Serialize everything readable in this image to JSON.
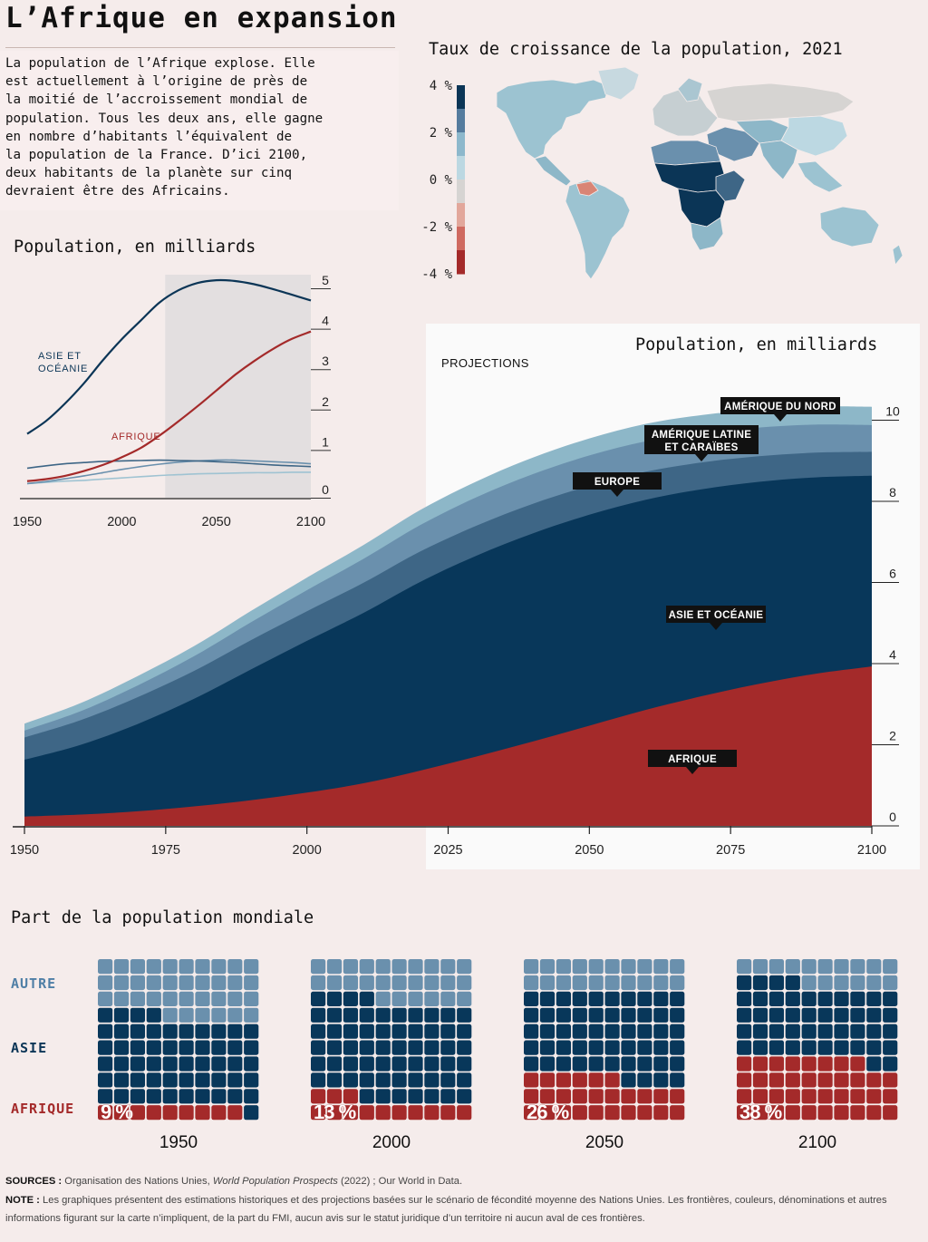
{
  "header": {
    "title": "L’Afrique en expansion",
    "intro": "La population de l’Afrique explose. Elle\nest actuellement à l’origine de près de\nla moitié de l’accroissement mondial de\npopulation. Tous les deux ans, elle gagne\nen nombre d’habitants l’équivalent de\nla population de la France. D’ici 2100,\ndeux habitants de la planète sur cinq\ndevraient être des Africains."
  },
  "map_panel": {
    "title": "Taux de croissance de la population, 2021",
    "legend_labels": [
      "4 %",
      "2 %",
      "0 %",
      "-2 %",
      "-4 %"
    ],
    "legend_colors": [
      "#0b3556",
      "#557c9e",
      "#8db8cc",
      "#bcd8e2",
      "#d6d4d2",
      "#e2a79b",
      "#cf6a60",
      "#a42a2a"
    ]
  },
  "colors": {
    "africa": "#a42a2a",
    "asia": "#08375a",
    "europe": "#3e6686",
    "latam": "#6a90ad",
    "namerica": "#8db7c8",
    "background": "#f5eceb",
    "panel": "#fafafa"
  },
  "chart_data": [
    {
      "id": "small_lines",
      "type": "line",
      "title": "Population, en milliards",
      "x": [
        1950,
        1960,
        1970,
        1980,
        1990,
        2000,
        2010,
        2020,
        2030,
        2040,
        2050,
        2060,
        2070,
        2080,
        2090,
        2100
      ],
      "xticks": [
        1950,
        2000,
        2050,
        2100
      ],
      "ylim": [
        0,
        5
      ],
      "yticks": [
        0,
        1,
        2,
        3,
        4,
        5
      ],
      "projection_start": 2023,
      "series": [
        {
          "name": "ASIE ET OCÉANIE",
          "label_lines": [
            "ASIE ET",
            "OCÉANIE"
          ],
          "color": "#0b3556",
          "values": [
            1.4,
            1.72,
            2.15,
            2.65,
            3.22,
            3.74,
            4.2,
            4.65,
            4.95,
            5.13,
            5.2,
            5.18,
            5.1,
            4.98,
            4.84,
            4.7
          ]
        },
        {
          "name": "AFRIQUE",
          "label_lines": [
            "AFRIQUE"
          ],
          "color": "#a42a2a",
          "values": [
            0.23,
            0.28,
            0.36,
            0.48,
            0.63,
            0.82,
            1.05,
            1.36,
            1.71,
            2.08,
            2.47,
            2.86,
            3.2,
            3.5,
            3.75,
            3.93
          ]
        },
        {
          "name": "Europe",
          "color": "#3e6686",
          "values": [
            0.55,
            0.61,
            0.66,
            0.69,
            0.72,
            0.73,
            0.74,
            0.75,
            0.74,
            0.73,
            0.71,
            0.69,
            0.66,
            0.63,
            0.61,
            0.59
          ]
        },
        {
          "name": "Amérique latine et Caraïbes",
          "color": "#6a90ad",
          "values": [
            0.17,
            0.22,
            0.29,
            0.36,
            0.44,
            0.52,
            0.59,
            0.65,
            0.7,
            0.73,
            0.75,
            0.75,
            0.73,
            0.71,
            0.69,
            0.66
          ]
        },
        {
          "name": "Amérique du Nord",
          "color": "#9fc3d2",
          "values": [
            0.17,
            0.2,
            0.23,
            0.25,
            0.28,
            0.31,
            0.34,
            0.37,
            0.39,
            0.41,
            0.42,
            0.43,
            0.44,
            0.44,
            0.45,
            0.45
          ]
        }
      ]
    },
    {
      "id": "big_area",
      "type": "area",
      "title": "Population, en milliards",
      "projection_label": "PROJECTIONS",
      "projection_start": 2025,
      "x": [
        1950,
        1960,
        1970,
        1980,
        1990,
        2000,
        2010,
        2020,
        2030,
        2040,
        2050,
        2060,
        2070,
        2080,
        2090,
        2100
      ],
      "xticks": [
        1950,
        1975,
        2000,
        2025,
        2050,
        2075,
        2100
      ],
      "ylim": [
        0,
        10.4
      ],
      "yticks": [
        0,
        2,
        4,
        6,
        8,
        10
      ],
      "series": [
        {
          "name": "AFRIQUE",
          "color": "#a42a2a",
          "values": [
            0.23,
            0.28,
            0.36,
            0.48,
            0.63,
            0.82,
            1.05,
            1.36,
            1.71,
            2.08,
            2.47,
            2.86,
            3.2,
            3.5,
            3.75,
            3.93
          ]
        },
        {
          "name": "ASIE ET OCÉANIE",
          "color": "#08375a",
          "values": [
            1.4,
            1.72,
            2.15,
            2.65,
            3.22,
            3.74,
            4.2,
            4.65,
            4.95,
            5.13,
            5.2,
            5.18,
            5.1,
            4.98,
            4.84,
            4.7
          ]
        },
        {
          "name": "EUROPE",
          "color": "#3e6686",
          "values": [
            0.55,
            0.61,
            0.66,
            0.69,
            0.72,
            0.73,
            0.74,
            0.75,
            0.74,
            0.73,
            0.71,
            0.69,
            0.66,
            0.63,
            0.61,
            0.59
          ]
        },
        {
          "name": "AMÉRIQUE LATINE ET CARAÏBES",
          "label_lines": [
            "AMÉRIQUE LATINE",
            "ET CARAÏBES"
          ],
          "color": "#6a90ad",
          "values": [
            0.17,
            0.22,
            0.29,
            0.36,
            0.44,
            0.52,
            0.59,
            0.65,
            0.7,
            0.73,
            0.75,
            0.75,
            0.73,
            0.71,
            0.69,
            0.66
          ]
        },
        {
          "name": "AMÉRIQUE DU NORD",
          "color": "#8db7c8",
          "values": [
            0.17,
            0.2,
            0.23,
            0.25,
            0.28,
            0.31,
            0.34,
            0.37,
            0.39,
            0.41,
            0.42,
            0.43,
            0.44,
            0.44,
            0.45,
            0.45
          ]
        }
      ]
    },
    {
      "id": "waffles",
      "type": "waffle",
      "title": "Part de la population mondiale",
      "row_labels": [
        "AUTRE",
        "ASIE",
        "AFRIQUE"
      ],
      "row_label_colors": [
        "#4f7fa6",
        "#0b3556",
        "#a42a2a"
      ],
      "cells_per_chart": 100,
      "years": [
        {
          "year": "1950",
          "africa_pct": 9,
          "africa_label": "9 %",
          "asia": 55,
          "other": 36
        },
        {
          "year": "2000",
          "africa_pct": 13,
          "africa_label": "13 %",
          "asia": 61,
          "other": 26
        },
        {
          "year": "2050",
          "africa_pct": 26,
          "africa_label": "26 %",
          "asia": 54,
          "other": 20
        },
        {
          "year": "2100",
          "africa_pct": 38,
          "africa_label": "38 %",
          "asia": 46,
          "other": 16
        }
      ]
    }
  ],
  "footer": {
    "sources_label": "SOURCES :",
    "sources_text_1": "Organisation des Nations Unies, ",
    "sources_italic": "World Population Prospects",
    "sources_text_2": " (2022) ; Our World in Data.",
    "note_label": "NOTE :",
    "note_text": "Les graphiques présentent des estimations historiques et des projections basées sur le scénario de fécondité moyenne des Nations Unies. Les frontières, couleurs, dénominations et autres informations figurant sur la carte n’impliquent, de la part du FMI, aucun avis sur le statut juridique d’un territoire ni aucun aval de ces frontières."
  }
}
